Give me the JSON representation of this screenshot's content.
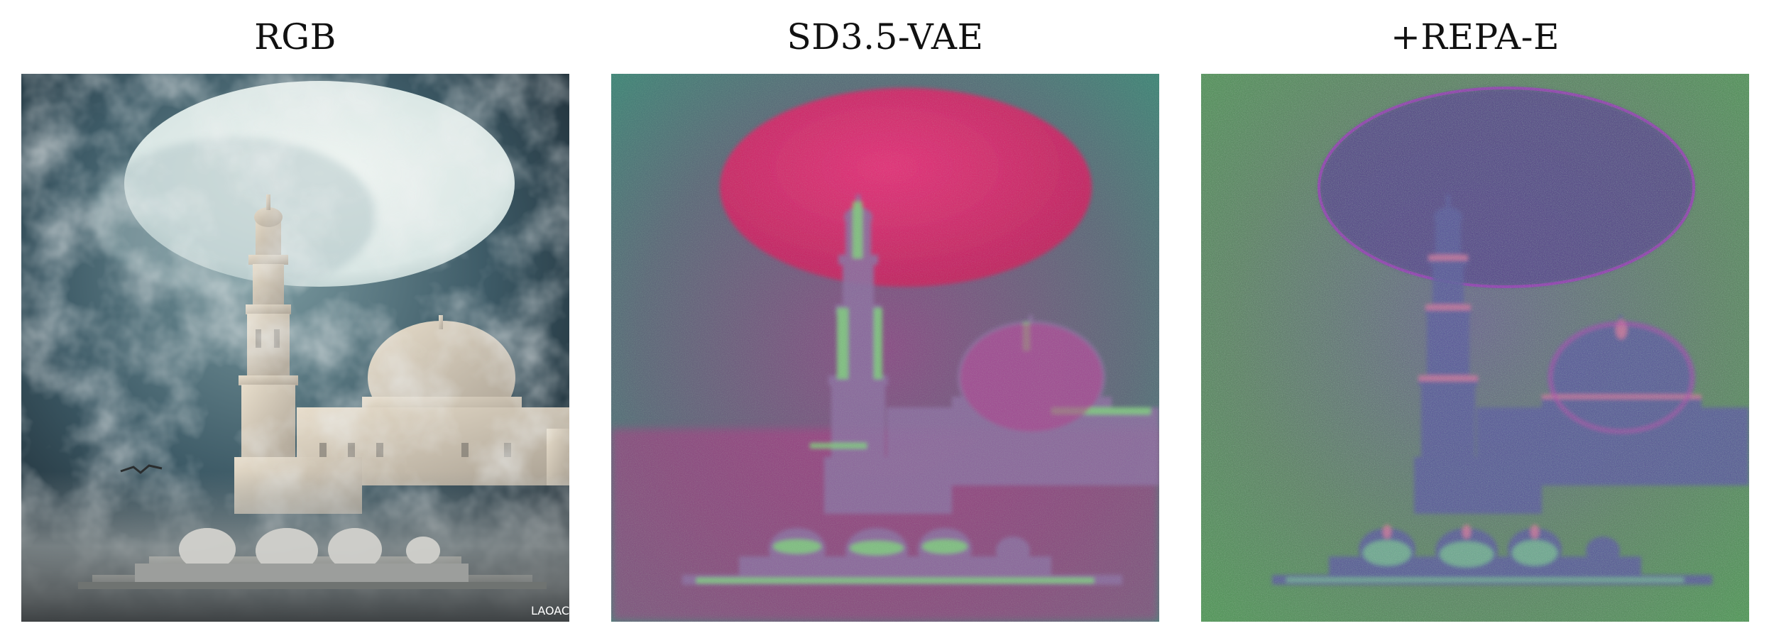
{
  "figure": {
    "panels": [
      {
        "title": "RGB",
        "image": "mosque-under-moon-rgb"
      },
      {
        "title": "SD3.5-VAE",
        "image": "mosque-latent-sd35-vae"
      },
      {
        "title": "+REPA-E",
        "image": "mosque-latent-repa-e"
      }
    ],
    "watermark": "LAOAC"
  }
}
